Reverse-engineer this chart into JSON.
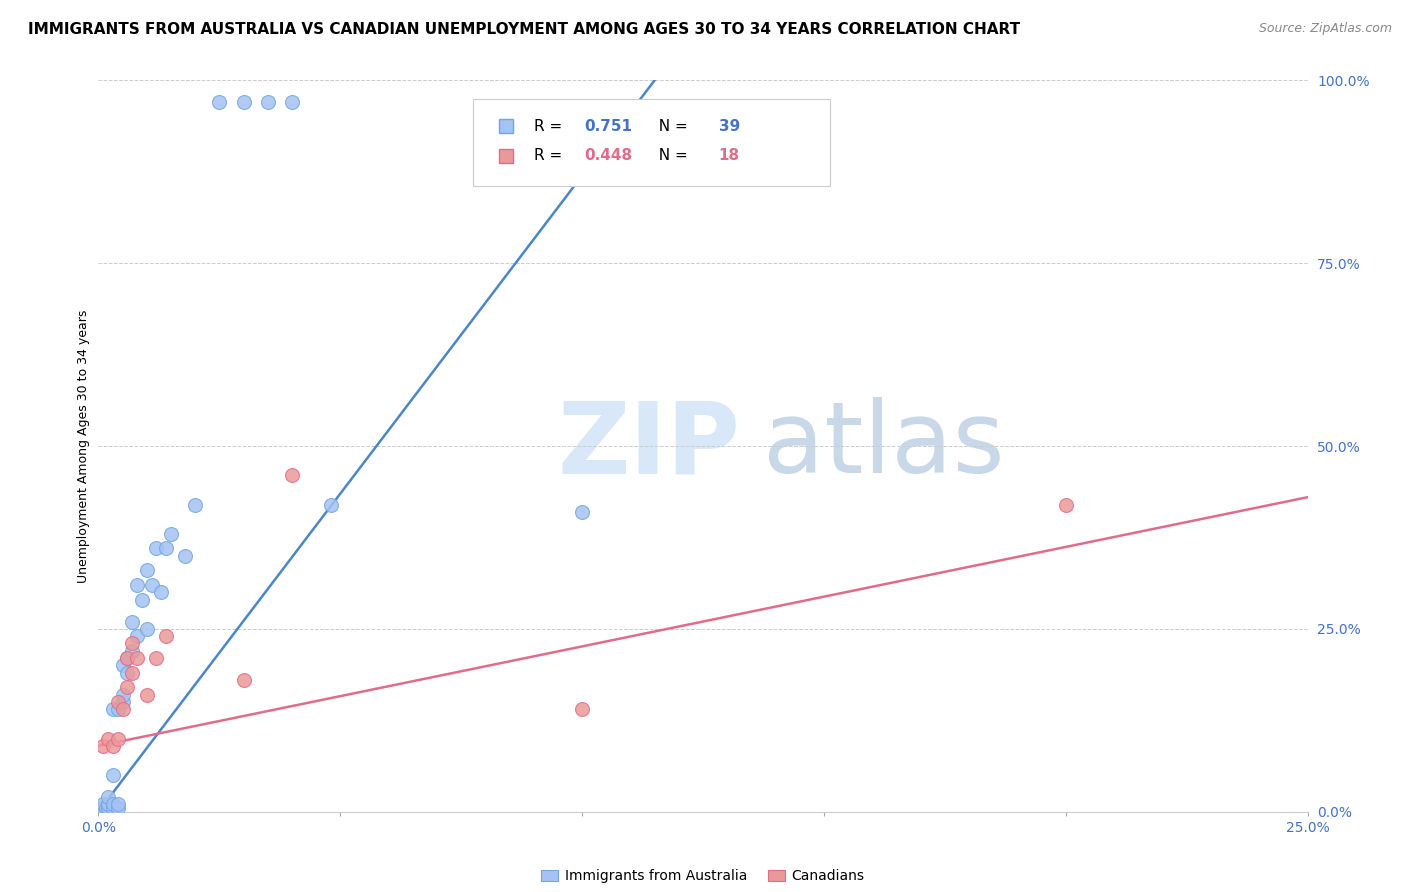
{
  "title": "IMMIGRANTS FROM AUSTRALIA VS CANADIAN UNEMPLOYMENT AMONG AGES 30 TO 34 YEARS CORRELATION CHART",
  "source": "Source: ZipAtlas.com",
  "ylabel": "Unemployment Among Ages 30 to 34 years",
  "xlim": [
    0,
    0.25
  ],
  "ylim": [
    0,
    1.0
  ],
  "xticks": [
    0.0,
    0.05,
    0.1,
    0.15,
    0.2,
    0.25
  ],
  "xtick_labels": [
    "0.0%",
    "",
    "",
    "",
    "",
    "25.0%"
  ],
  "yticks_right": [
    0.0,
    0.25,
    0.5,
    0.75,
    1.0
  ],
  "ytick_labels_right": [
    "0.0%",
    "25.0%",
    "50.0%",
    "75.0%",
    "100.0%"
  ],
  "blue_R": "0.751",
  "blue_N": "39",
  "pink_R": "0.448",
  "pink_N": "18",
  "blue_color": "#a4c2f4",
  "pink_color": "#ea9999",
  "blue_edge_color": "#6fa8dc",
  "pink_edge_color": "#e06c8a",
  "blue_line_color": "#4a86c8",
  "pink_line_color": "#e06c8a",
  "watermark_zip": "ZIP",
  "watermark_atlas": "atlas",
  "watermark_color": "#d8e8f8",
  "blue_scatter_x": [
    0.0005,
    0.001,
    0.001,
    0.0015,
    0.002,
    0.002,
    0.002,
    0.003,
    0.003,
    0.003,
    0.003,
    0.004,
    0.004,
    0.004,
    0.005,
    0.005,
    0.005,
    0.006,
    0.006,
    0.007,
    0.007,
    0.008,
    0.008,
    0.009,
    0.01,
    0.01,
    0.011,
    0.012,
    0.013,
    0.014,
    0.015,
    0.018,
    0.02,
    0.025,
    0.03,
    0.035,
    0.04,
    0.048,
    0.1
  ],
  "blue_scatter_y": [
    0.005,
    0.005,
    0.01,
    0.005,
    0.005,
    0.01,
    0.02,
    0.005,
    0.01,
    0.05,
    0.14,
    0.005,
    0.01,
    0.14,
    0.15,
    0.16,
    0.2,
    0.19,
    0.21,
    0.22,
    0.26,
    0.24,
    0.31,
    0.29,
    0.25,
    0.33,
    0.31,
    0.36,
    0.3,
    0.36,
    0.38,
    0.35,
    0.42,
    0.97,
    0.97,
    0.97,
    0.97,
    0.42,
    0.41
  ],
  "blue_line_x": [
    0.0,
    0.115
  ],
  "blue_line_y": [
    0.0,
    1.0
  ],
  "pink_scatter_x": [
    0.001,
    0.002,
    0.003,
    0.004,
    0.004,
    0.005,
    0.006,
    0.006,
    0.007,
    0.007,
    0.008,
    0.01,
    0.012,
    0.014,
    0.03,
    0.04,
    0.1,
    0.2
  ],
  "pink_scatter_y": [
    0.09,
    0.1,
    0.09,
    0.1,
    0.15,
    0.14,
    0.17,
    0.21,
    0.19,
    0.23,
    0.21,
    0.16,
    0.21,
    0.24,
    0.18,
    0.46,
    0.14,
    0.42
  ],
  "pink_line_x": [
    0.0,
    0.25
  ],
  "pink_line_y": [
    0.09,
    0.43
  ],
  "title_fontsize": 11,
  "axis_label_fontsize": 9,
  "tick_fontsize": 10,
  "marker_size": 100
}
